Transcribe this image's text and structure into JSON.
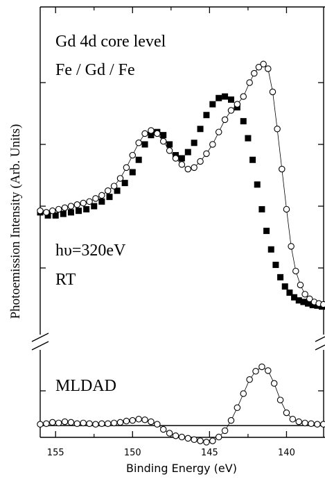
{
  "chart_data": [
    {
      "type": "scatter",
      "panel": "upper",
      "annotations": [
        "Gd 4d core level",
        "Fe / Gd / Fe",
        "hυ=320eV",
        "RT"
      ],
      "xlabel": "Binding Energy (eV)",
      "ylabel": "Photoemission Intensity (Arb. Units)",
      "x_reversed": true,
      "xlim": [
        156,
        137.5
      ],
      "ylim": [
        0,
        1
      ],
      "x_ticks": [
        "155",
        "150",
        "145",
        "140"
      ],
      "x_tick_values": [
        155,
        150,
        145,
        140
      ],
      "y_tick_values": [
        0.2,
        0.4,
        0.6,
        0.8
      ],
      "grid": false,
      "series": [
        {
          "marker": "filled-square",
          "color": "#000000",
          "x": [
            156,
            155.5,
            155,
            154.5,
            154,
            153.5,
            153,
            152.5,
            152,
            151.5,
            151,
            150.5,
            150,
            149.6,
            149.2,
            148.8,
            148.4,
            148,
            147.6,
            147.2,
            146.8,
            146.4,
            146,
            145.6,
            145.2,
            144.8,
            144.4,
            144,
            143.6,
            143.2,
            142.8,
            142.5,
            142.2,
            141.9,
            141.6,
            141.3,
            141,
            140.7,
            140.4,
            140.1,
            139.8,
            139.5,
            139.2,
            138.9,
            138.6,
            138.3,
            138,
            137.7
          ],
          "y": [
            0.38,
            0.37,
            0.37,
            0.375,
            0.38,
            0.385,
            0.39,
            0.4,
            0.415,
            0.43,
            0.45,
            0.475,
            0.51,
            0.55,
            0.6,
            0.63,
            0.64,
            0.63,
            0.6,
            0.565,
            0.555,
            0.575,
            0.605,
            0.65,
            0.695,
            0.73,
            0.75,
            0.755,
            0.745,
            0.72,
            0.675,
            0.62,
            0.55,
            0.47,
            0.39,
            0.32,
            0.26,
            0.21,
            0.17,
            0.14,
            0.12,
            0.105,
            0.095,
            0.09,
            0.085,
            0.08,
            0.078,
            0.075
          ]
        },
        {
          "marker": "open-circle",
          "color": "#000000",
          "x": [
            156,
            155.6,
            155.2,
            154.8,
            154.4,
            154,
            153.6,
            153.2,
            152.8,
            152.4,
            152,
            151.6,
            151.2,
            150.8,
            150.4,
            150,
            149.6,
            149.2,
            148.8,
            148.4,
            148,
            147.6,
            147.2,
            146.8,
            146.4,
            146,
            145.6,
            145.2,
            144.8,
            144.4,
            144,
            143.6,
            143.2,
            142.8,
            142.4,
            142.1,
            141.8,
            141.5,
            141.2,
            140.9,
            140.6,
            140.3,
            140,
            139.7,
            139.4,
            139.1,
            138.8,
            138.5,
            138.2,
            137.9,
            137.6
          ],
          "y": [
            0.385,
            0.38,
            0.385,
            0.39,
            0.395,
            0.4,
            0.405,
            0.41,
            0.415,
            0.425,
            0.435,
            0.45,
            0.465,
            0.49,
            0.525,
            0.565,
            0.605,
            0.635,
            0.645,
            0.635,
            0.61,
            0.58,
            0.555,
            0.535,
            0.52,
            0.525,
            0.545,
            0.57,
            0.6,
            0.64,
            0.68,
            0.71,
            0.73,
            0.755,
            0.8,
            0.83,
            0.85,
            0.86,
            0.845,
            0.77,
            0.65,
            0.52,
            0.39,
            0.27,
            0.19,
            0.145,
            0.115,
            0.1,
            0.09,
            0.085,
            0.082
          ]
        }
      ]
    },
    {
      "type": "scatter",
      "panel": "lower",
      "annotations": [
        "MLDAD"
      ],
      "xlim": [
        156,
        137.5
      ],
      "ylim": [
        -1,
        1
      ],
      "baseline": 0,
      "grid": false,
      "series": [
        {
          "marker": "open-circle",
          "color": "#000000",
          "x": [
            156,
            155.6,
            155.2,
            154.8,
            154.4,
            154,
            153.6,
            153.2,
            152.8,
            152.4,
            152,
            151.6,
            151.2,
            150.8,
            150.4,
            150,
            149.6,
            149.2,
            148.8,
            148.4,
            148,
            147.6,
            147.2,
            146.8,
            146.4,
            146,
            145.6,
            145.2,
            144.8,
            144.4,
            144,
            143.6,
            143.2,
            142.8,
            142.4,
            142,
            141.6,
            141.2,
            140.8,
            140.4,
            140,
            139.6,
            139.2,
            138.8,
            138.4,
            138,
            137.6
          ],
          "y": [
            0.02,
            0.03,
            0.05,
            0.04,
            0.06,
            0.05,
            0.03,
            0.04,
            0.03,
            0.02,
            0.03,
            0.03,
            0.04,
            0.05,
            0.07,
            0.08,
            0.1,
            0.09,
            0.06,
            0.02,
            -0.06,
            -0.12,
            -0.16,
            -0.18,
            -0.2,
            -0.22,
            -0.24,
            -0.26,
            -0.24,
            -0.18,
            -0.08,
            0.08,
            0.28,
            0.5,
            0.72,
            0.85,
            0.92,
            0.86,
            0.66,
            0.4,
            0.2,
            0.1,
            0.06,
            0.04,
            0.03,
            0.02,
            0.02
          ]
        }
      ]
    }
  ]
}
